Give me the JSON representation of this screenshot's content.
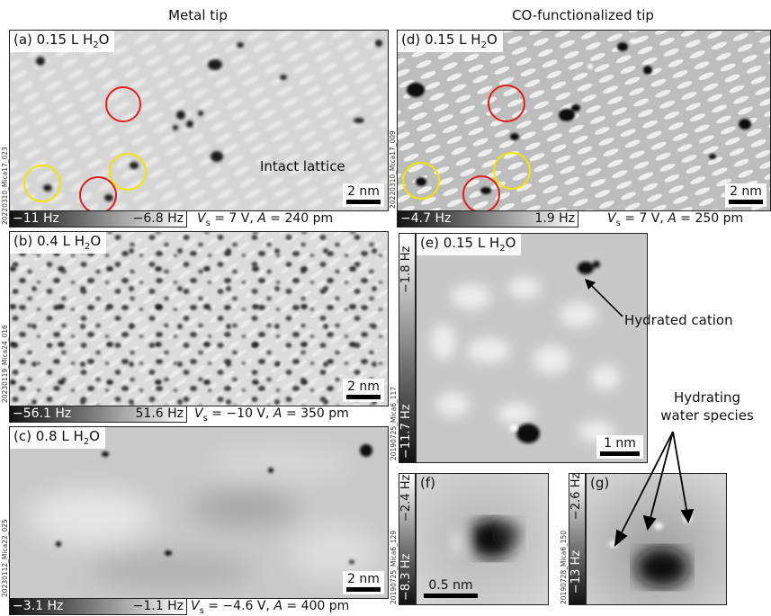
{
  "column_titles": {
    "left": "Metal tip",
    "right": "CO-functionalized tip"
  },
  "panels": {
    "a": {
      "label": "(a) 0.15 L H",
      "sub": "2",
      "tail": "O",
      "scale": "2 nm",
      "cbar_low": "−11 Hz",
      "cbar_high": "−6.8 Hz",
      "params_v": "= 7 V, ",
      "params_a": "= 240 pm",
      "file": "20220310_Mica17_023",
      "annotation": "Intact lattice"
    },
    "b": {
      "label": "(b) 0.4 L H",
      "sub": "2",
      "tail": "O",
      "scale": "2 nm",
      "cbar_low": "−56.1 Hz",
      "cbar_high": "51.6 Hz",
      "params_v": "= −10 V, ",
      "params_a": "= 350 pm",
      "file": "20230119_Mica24_016"
    },
    "c": {
      "label": "(c) 0.8 L H",
      "sub": "2",
      "tail": "O",
      "scale": "2 nm",
      "cbar_low": "−3.1 Hz",
      "cbar_high": "−1.1 Hz",
      "params_v": "= −4.6 V, ",
      "params_a": "= 400 pm",
      "file": "20230112_Mica22_025"
    },
    "d": {
      "label": "(d) 0.15 L H",
      "sub": "2",
      "tail": "O",
      "scale": "2 nm",
      "cbar_low": "−4.7 Hz",
      "cbar_high": "1.9 Hz",
      "params_v": "= 7 V, ",
      "params_a": "= 250 pm",
      "file": "20220310_Mica17_009"
    },
    "e": {
      "label": "(e) 0.15 L H",
      "sub": "2",
      "tail": "O",
      "scale": "1 nm",
      "cbar_low": "−11.7 Hz",
      "cbar_high": "−1.8 Hz",
      "file": "20190725_Mica6_117",
      "annotation": "Hydrated cation"
    },
    "f": {
      "label": "(f)",
      "scale": "0.5 nm",
      "cbar_low": "−8.3 Hz",
      "cbar_high": "−2.4 Hz",
      "file": "20190725_Mica6_129"
    },
    "g": {
      "label": "(g)",
      "cbar_low": "−13 Hz",
      "cbar_high": "−2.6 Hz",
      "file": "20190728_Mica6_150"
    }
  },
  "params_labels": {
    "v_symbol": "V",
    "v_sub": "s",
    "a_symbol": "A"
  },
  "side_annotation": {
    "line1": "Hydrating",
    "line2": "water species"
  },
  "colors": {
    "yellow_circle": "#f2e600",
    "red_circle": "#e0201b"
  }
}
